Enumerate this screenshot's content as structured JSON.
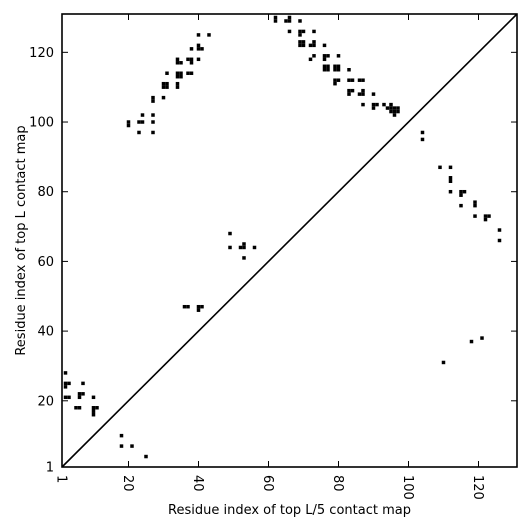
{
  "chart_data": {
    "type": "scatter",
    "marker": "square",
    "title": "",
    "xlabel": "Residue index of top L/5 contact map",
    "ylabel": "Residue index of top L contact map",
    "xlim": [
      1,
      131
    ],
    "ylim": [
      1,
      131
    ],
    "x_ticks": [
      1,
      20,
      40,
      60,
      80,
      100,
      120
    ],
    "x_tick_labels": [
      "1",
      "20",
      "40",
      "60",
      "80",
      "100",
      "120"
    ],
    "y_ticks": [
      1,
      20,
      40,
      60,
      80,
      100,
      120
    ],
    "y_tick_labels": [
      "1",
      "20",
      "40",
      "60",
      "80",
      "100",
      "120"
    ],
    "x_tick_rotation": -90,
    "diagonal_line": true,
    "grid": false,
    "colors": {
      "points": "#000000",
      "axes": "#000000",
      "background": "#ffffff"
    },
    "series": [
      {
        "region": "upper",
        "points": [
          [
            20,
            99
          ],
          [
            20,
            100
          ],
          [
            23,
            97
          ],
          [
            23,
            100
          ],
          [
            24,
            100
          ],
          [
            24,
            102
          ],
          [
            27,
            97
          ],
          [
            27,
            100
          ],
          [
            27,
            102
          ],
          [
            27,
            106
          ],
          [
            27,
            107
          ],
          [
            30,
            107
          ],
          [
            30,
            110
          ],
          [
            30,
            111
          ],
          [
            31,
            110
          ],
          [
            31,
            111
          ],
          [
            31,
            114
          ],
          [
            34,
            110
          ],
          [
            34,
            111
          ],
          [
            34,
            113
          ],
          [
            34,
            114
          ],
          [
            34,
            117
          ],
          [
            34,
            118
          ],
          [
            35,
            113
          ],
          [
            35,
            114
          ],
          [
            35,
            117
          ],
          [
            37,
            114
          ],
          [
            37,
            118
          ],
          [
            38,
            114
          ],
          [
            38,
            117
          ],
          [
            38,
            118
          ],
          [
            38,
            121
          ],
          [
            40,
            118
          ],
          [
            40,
            121
          ],
          [
            40,
            122
          ],
          [
            40,
            125
          ],
          [
            41,
            121
          ],
          [
            43,
            125
          ],
          [
            49,
            68
          ],
          [
            49,
            64
          ],
          [
            52,
            64
          ],
          [
            53,
            64
          ],
          [
            53,
            65
          ],
          [
            53,
            61
          ],
          [
            56,
            64
          ],
          [
            62,
            129
          ],
          [
            62,
            130
          ],
          [
            65,
            129
          ],
          [
            66,
            126
          ],
          [
            66,
            129
          ],
          [
            66,
            130
          ],
          [
            69,
            125
          ],
          [
            69,
            126
          ],
          [
            69,
            129
          ],
          [
            70,
            126
          ],
          [
            69,
            122
          ],
          [
            69,
            123
          ],
          [
            70,
            122
          ],
          [
            70,
            123
          ],
          [
            72,
            118
          ],
          [
            72,
            122
          ],
          [
            73,
            119
          ],
          [
            73,
            122
          ],
          [
            73,
            123
          ],
          [
            73,
            126
          ],
          [
            76,
            115
          ],
          [
            76,
            116
          ],
          [
            76,
            118
          ],
          [
            76,
            119
          ],
          [
            76,
            122
          ],
          [
            77,
            115
          ],
          [
            77,
            116
          ],
          [
            77,
            119
          ],
          [
            79,
            111
          ],
          [
            79,
            112
          ],
          [
            79,
            115
          ],
          [
            79,
            116
          ],
          [
            80,
            112
          ],
          [
            80,
            115
          ],
          [
            80,
            116
          ],
          [
            80,
            119
          ],
          [
            83,
            108
          ],
          [
            83,
            109
          ],
          [
            83,
            112
          ],
          [
            83,
            115
          ],
          [
            84,
            109
          ],
          [
            84,
            112
          ],
          [
            86,
            108
          ],
          [
            86,
            112
          ],
          [
            87,
            105
          ],
          [
            87,
            108
          ],
          [
            87,
            109
          ],
          [
            87,
            112
          ],
          [
            90,
            104
          ],
          [
            90,
            105
          ],
          [
            90,
            108
          ],
          [
            91,
            105
          ],
          [
            93,
            105
          ],
          [
            94,
            104
          ],
          [
            95,
            103
          ],
          [
            95,
            104
          ],
          [
            95,
            105
          ],
          [
            96,
            102
          ],
          [
            96,
            103
          ],
          [
            96,
            104
          ],
          [
            97,
            103
          ],
          [
            97,
            104
          ]
        ]
      },
      {
        "region": "lower",
        "points": [
          [
            2,
            21
          ],
          [
            2,
            24
          ],
          [
            2,
            25
          ],
          [
            2,
            28
          ],
          [
            3,
            21
          ],
          [
            3,
            25
          ],
          [
            5,
            18
          ],
          [
            6,
            18
          ],
          [
            6,
            21
          ],
          [
            6,
            22
          ],
          [
            7,
            22
          ],
          [
            7,
            25
          ],
          [
            10,
            16
          ],
          [
            10,
            17
          ],
          [
            10,
            18
          ],
          [
            10,
            21
          ],
          [
            11,
            18
          ],
          [
            18,
            7
          ],
          [
            18,
            10
          ],
          [
            21,
            7
          ],
          [
            25,
            4
          ],
          [
            36,
            47
          ],
          [
            37,
            47
          ],
          [
            40,
            46
          ],
          [
            40,
            47
          ],
          [
            41,
            47
          ],
          [
            104,
            95
          ],
          [
            104,
            97
          ],
          [
            109,
            87
          ],
          [
            110,
            31
          ],
          [
            112,
            80
          ],
          [
            112,
            83
          ],
          [
            112,
            84
          ],
          [
            112,
            87
          ],
          [
            115,
            76
          ],
          [
            115,
            79
          ],
          [
            115,
            80
          ],
          [
            116,
            80
          ],
          [
            118,
            37
          ],
          [
            119,
            73
          ],
          [
            119,
            76
          ],
          [
            119,
            77
          ],
          [
            121,
            38
          ],
          [
            122,
            72
          ],
          [
            122,
            73
          ],
          [
            123,
            73
          ],
          [
            126,
            66
          ],
          [
            126,
            69
          ]
        ]
      }
    ]
  }
}
